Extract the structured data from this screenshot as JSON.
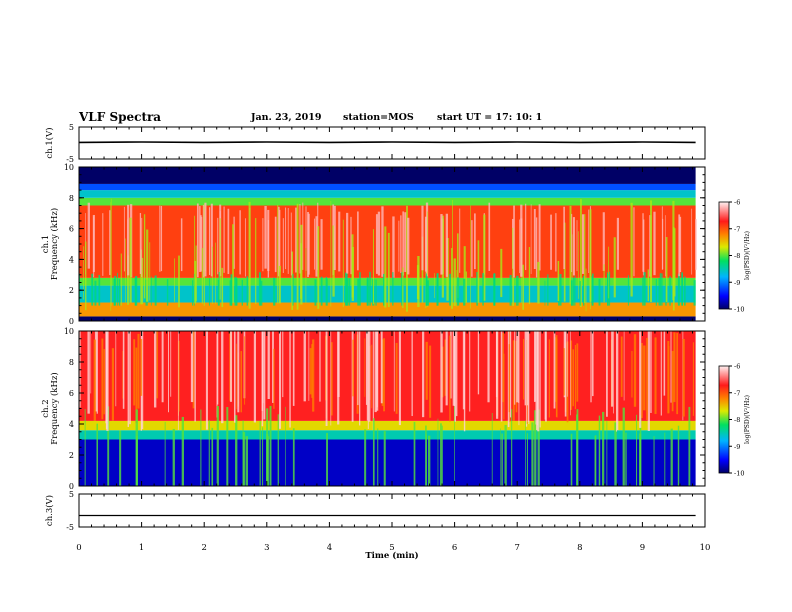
{
  "header": {
    "title": "VLF Spectra",
    "date": "Jan. 23, 2019",
    "station": "station=MOS",
    "start": "start  UT  =   17: 10: 1"
  },
  "colorbar": {
    "label": "log(PSD)(V²/Hz)",
    "ticks": [
      "-6",
      "-7",
      "-8",
      "-9",
      "-10"
    ]
  },
  "chart_data": [
    {
      "type": "line",
      "panel": "ch1-waveform",
      "ylabel": "ch.1(V)",
      "yticks": [
        "5",
        "-5"
      ],
      "ylim": [
        -5,
        5
      ],
      "xlim": [
        0,
        10
      ],
      "x": [
        0,
        1,
        2,
        3,
        4,
        5,
        6,
        7,
        8,
        9,
        9.85
      ],
      "y": [
        0.2,
        0.3,
        0.2,
        0.3,
        0.2,
        0.3,
        0.2,
        0.3,
        0.2,
        0.3,
        0.2
      ]
    },
    {
      "type": "heatmap",
      "panel": "ch1-spectrogram",
      "ylabel": "ch.1\nFrequency (kHz)",
      "ylabel_lines": [
        "ch.1",
        "Frequency (kHz)"
      ],
      "yticks": [
        "0",
        "2",
        "4",
        "6",
        "8",
        "10"
      ],
      "ylim": [
        0,
        10
      ],
      "xlim": [
        0,
        10
      ],
      "data_end_min": 9.85,
      "zlim": [
        -10,
        -6
      ],
      "bands": [
        {
          "f0": 0,
          "f1": 0.3,
          "level": -10
        },
        {
          "f0": 0.3,
          "f1": 1.2,
          "level": -7.3
        },
        {
          "f0": 1.2,
          "f1": 2.3,
          "level": -8.6
        },
        {
          "f0": 2.3,
          "f1": 2.8,
          "level": -8.0
        },
        {
          "f0": 2.8,
          "f1": 7.5,
          "level": -6.9
        },
        {
          "f0": 7.5,
          "f1": 8.0,
          "level": -8.0
        },
        {
          "f0": 8.0,
          "f1": 8.5,
          "level": -8.6
        },
        {
          "f0": 8.5,
          "f1": 8.9,
          "level": -9.2
        },
        {
          "f0": 8.9,
          "f1": 10,
          "level": -10
        }
      ]
    },
    {
      "type": "heatmap",
      "panel": "ch2-spectrogram",
      "ylabel": "ch.2\nFrequency (kHz)",
      "ylabel_lines": [
        "ch.2",
        "Frequency (kHz)"
      ],
      "yticks": [
        "0",
        "2",
        "4",
        "6",
        "8",
        "10"
      ],
      "ylim": [
        0,
        10
      ],
      "xlim": [
        0,
        10
      ],
      "data_end_min": 9.85,
      "zlim": [
        -10,
        -6
      ],
      "bands": [
        {
          "f0": 0,
          "f1": 3.0,
          "level": -9.7
        },
        {
          "f0": 3.0,
          "f1": 3.6,
          "level": -8.5
        },
        {
          "f0": 3.6,
          "f1": 4.2,
          "level": -7.6
        },
        {
          "f0": 4.2,
          "f1": 10,
          "level": -6.7
        }
      ]
    },
    {
      "type": "line",
      "panel": "ch3-waveform",
      "ylabel": "ch.3(V)",
      "yticks": [
        "5",
        "-5"
      ],
      "ylim": [
        -5,
        5
      ],
      "xlim": [
        0,
        10
      ],
      "x": [
        0,
        9.85
      ],
      "y": [
        -1.5,
        -1.5
      ],
      "xlabel": "Time (min)",
      "xticks": [
        "0",
        "1",
        "2",
        "3",
        "4",
        "5",
        "6",
        "7",
        "8",
        "9",
        "10"
      ]
    }
  ]
}
